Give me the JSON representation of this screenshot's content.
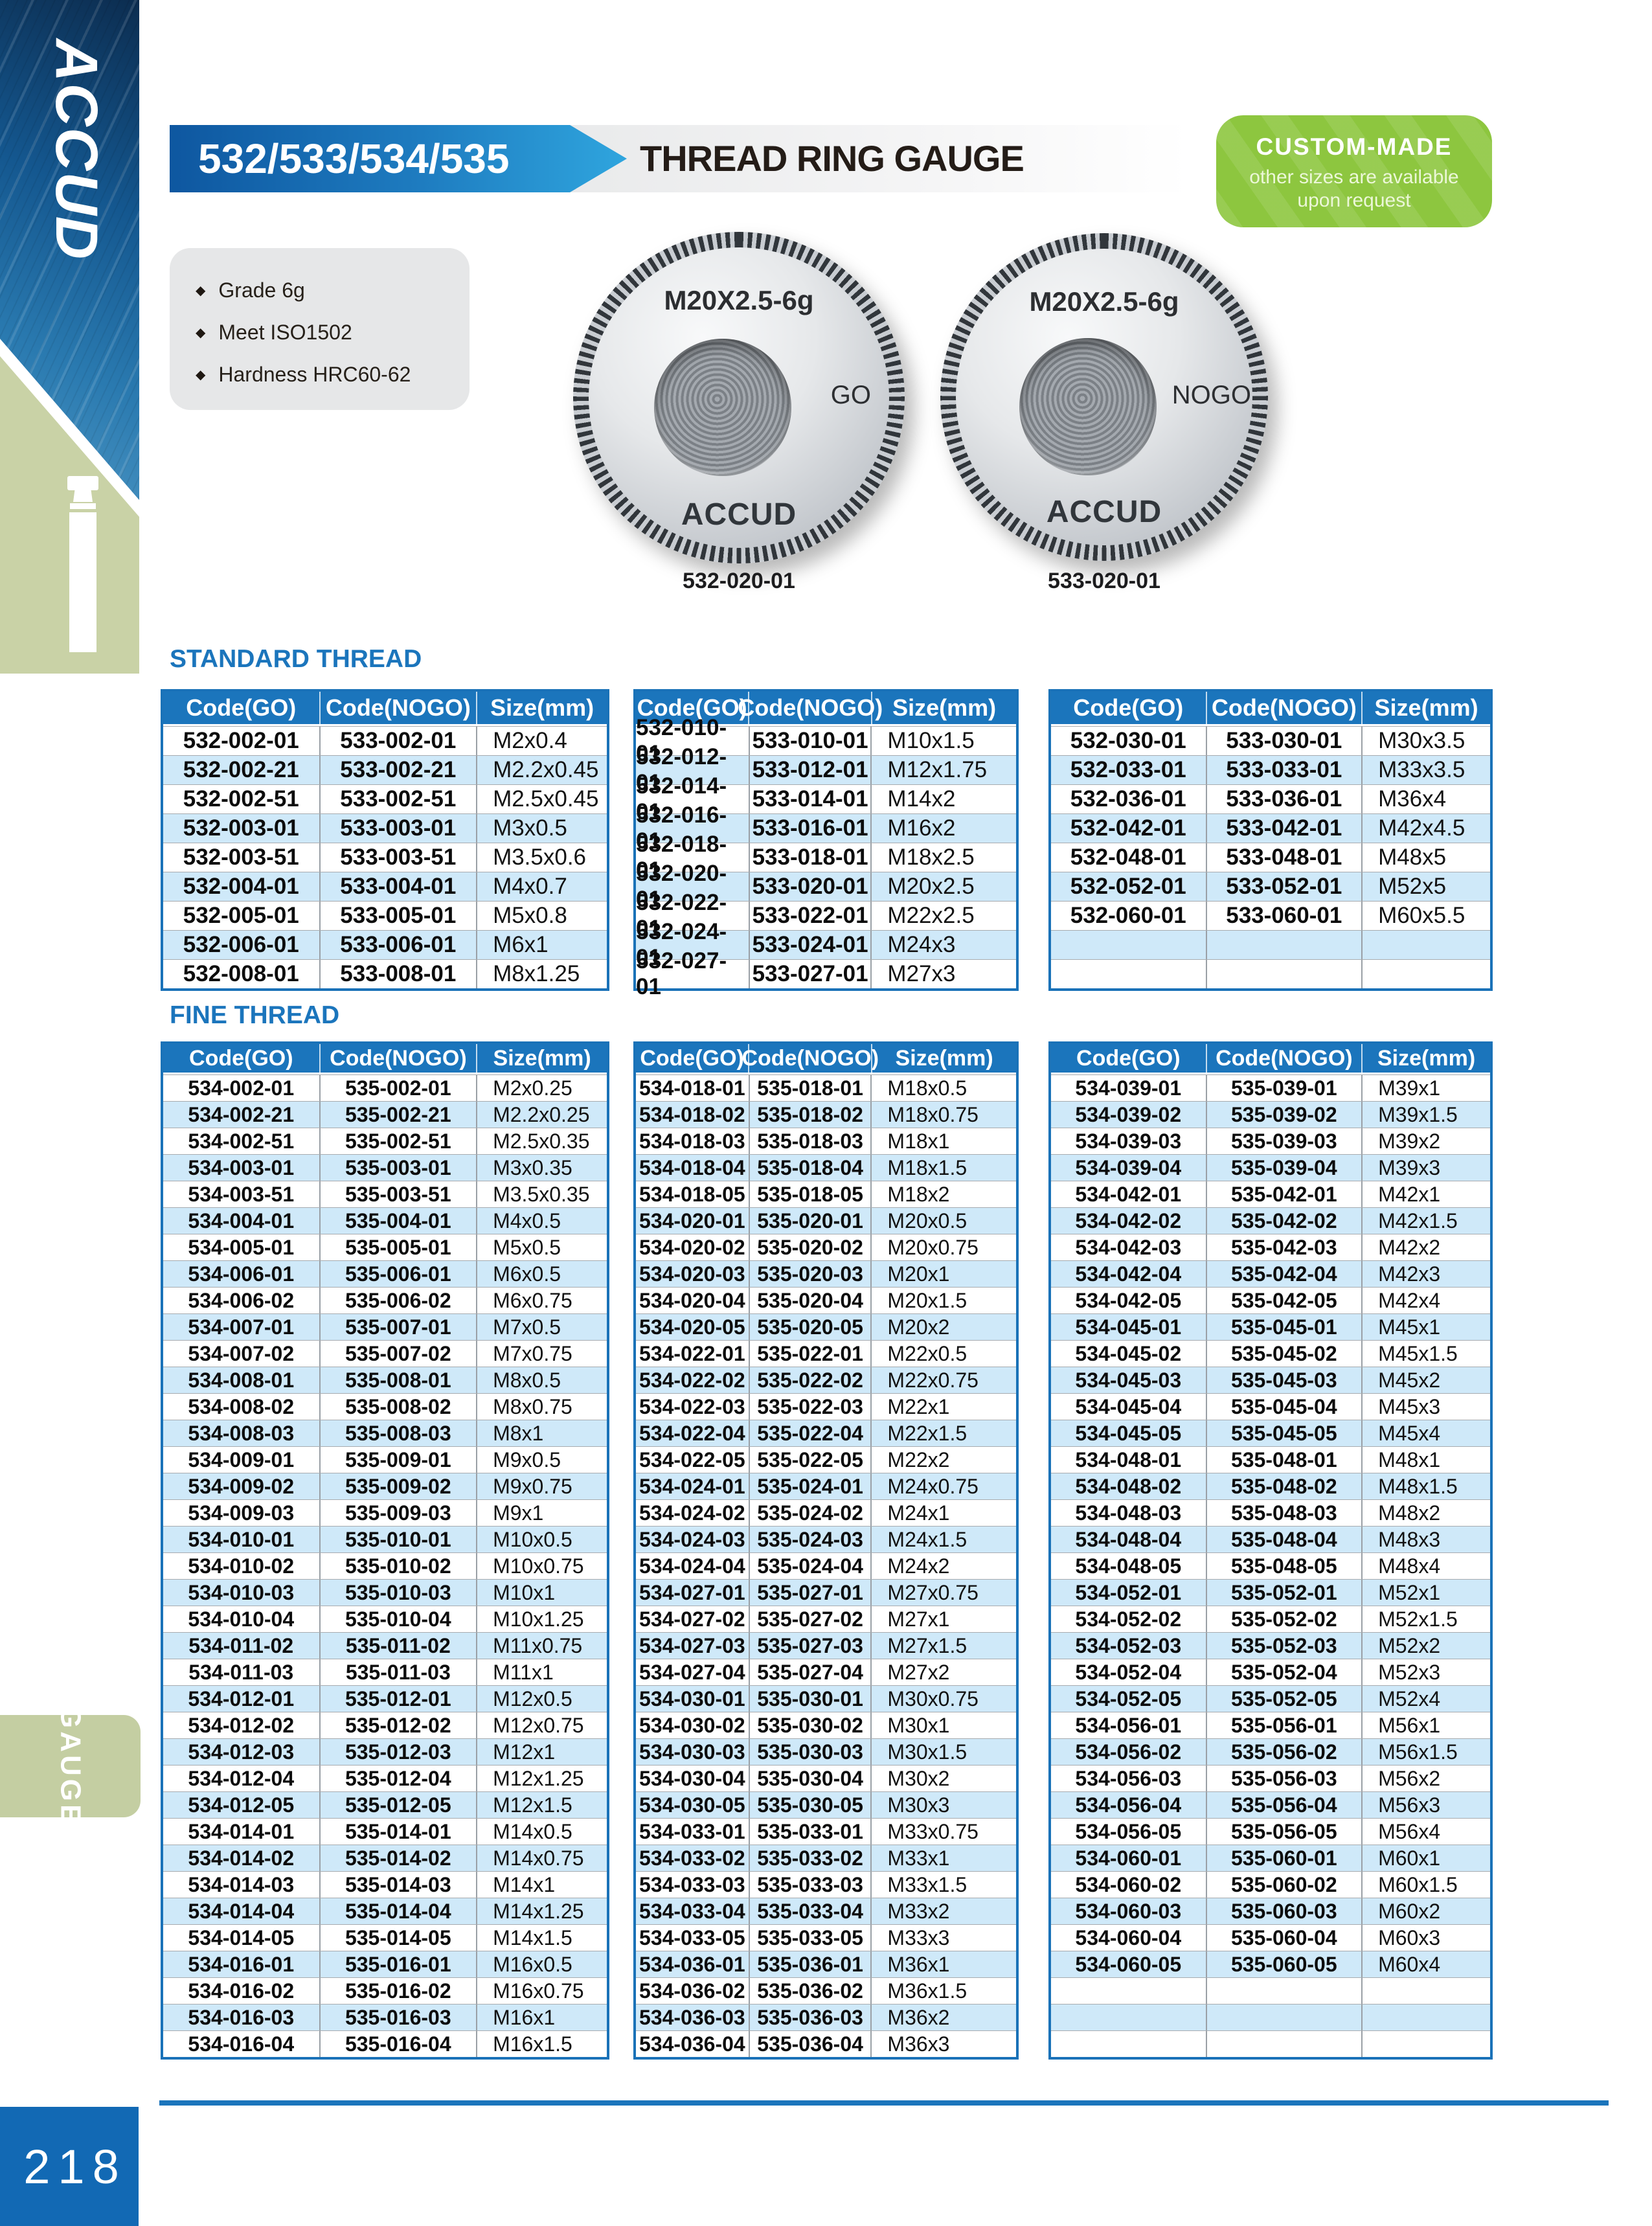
{
  "page": {
    "number": "218",
    "side_tab": "GAUGE"
  },
  "logo": {
    "brand": "ACCUD"
  },
  "header": {
    "series": "532/533/534/535",
    "title": "THREAD RING GAUGE",
    "badge": {
      "title": "CUSTOM-MADE",
      "line1": "other sizes are available",
      "line2": "upon request"
    }
  },
  "features": [
    "Grade 6g",
    "Meet ISO1502",
    "Hardness HRC60-62"
  ],
  "products": [
    {
      "marking": "M20X2.5-6g",
      "type": "GO",
      "brand": "ACCUD",
      "caption": "532-020-01"
    },
    {
      "marking": "M20X2.5-6g",
      "type": "NOGO",
      "brand": "ACCUD",
      "caption": "533-020-01"
    }
  ],
  "columns": [
    "Code(GO)",
    "Code(NOGO)",
    "Size(mm)"
  ],
  "colors": {
    "accent_blue": "#1b75bc",
    "row_alt_blue": "#cfe9f9",
    "badge_green": "#8dc63f",
    "sidebar_green": "#c9d2a6",
    "tab_green": "#c4cea2",
    "pagenum_blue": "#1269b4"
  },
  "sections": [
    {
      "heading": "STANDARD THREAD",
      "tables": [
        {
          "rows": [
            [
              "532-002-01",
              "533-002-01",
              "M2x0.4"
            ],
            [
              "532-002-21",
              "533-002-21",
              "M2.2x0.45"
            ],
            [
              "532-002-51",
              "533-002-51",
              "M2.5x0.45"
            ],
            [
              "532-003-01",
              "533-003-01",
              "M3x0.5"
            ],
            [
              "532-003-51",
              "533-003-51",
              "M3.5x0.6"
            ],
            [
              "532-004-01",
              "533-004-01",
              "M4x0.7"
            ],
            [
              "532-005-01",
              "533-005-01",
              "M5x0.8"
            ],
            [
              "532-006-01",
              "533-006-01",
              "M6x1"
            ],
            [
              "532-008-01",
              "533-008-01",
              "M8x1.25"
            ]
          ]
        },
        {
          "rows": [
            [
              "532-010-01",
              "533-010-01",
              "M10x1.5"
            ],
            [
              "532-012-01",
              "533-012-01",
              "M12x1.75"
            ],
            [
              "532-014-01",
              "533-014-01",
              "M14x2"
            ],
            [
              "532-016-01",
              "533-016-01",
              "M16x2"
            ],
            [
              "532-018-01",
              "533-018-01",
              "M18x2.5"
            ],
            [
              "532-020-01",
              "533-020-01",
              "M20x2.5"
            ],
            [
              "532-022-01",
              "533-022-01",
              "M22x2.5"
            ],
            [
              "532-024-01",
              "533-024-01",
              "M24x3"
            ],
            [
              "532-027-01",
              "533-027-01",
              "M27x3"
            ]
          ]
        },
        {
          "rows": [
            [
              "532-030-01",
              "533-030-01",
              "M30x3.5"
            ],
            [
              "532-033-01",
              "533-033-01",
              "M33x3.5"
            ],
            [
              "532-036-01",
              "533-036-01",
              "M36x4"
            ],
            [
              "532-042-01",
              "533-042-01",
              "M42x4.5"
            ],
            [
              "532-048-01",
              "533-048-01",
              "M48x5"
            ],
            [
              "532-052-01",
              "533-052-01",
              "M52x5"
            ],
            [
              "532-060-01",
              "533-060-01",
              "M60x5.5"
            ],
            [
              "",
              "",
              ""
            ],
            [
              "",
              "",
              ""
            ]
          ]
        }
      ]
    },
    {
      "heading": "FINE THREAD",
      "tables": [
        {
          "rows": [
            [
              "534-002-01",
              "535-002-01",
              "M2x0.25"
            ],
            [
              "534-002-21",
              "535-002-21",
              "M2.2x0.25"
            ],
            [
              "534-002-51",
              "535-002-51",
              "M2.5x0.35"
            ],
            [
              "534-003-01",
              "535-003-01",
              "M3x0.35"
            ],
            [
              "534-003-51",
              "535-003-51",
              "M3.5x0.35"
            ],
            [
              "534-004-01",
              "535-004-01",
              "M4x0.5"
            ],
            [
              "534-005-01",
              "535-005-01",
              "M5x0.5"
            ],
            [
              "534-006-01",
              "535-006-01",
              "M6x0.5"
            ],
            [
              "534-006-02",
              "535-006-02",
              "M6x0.75"
            ],
            [
              "534-007-01",
              "535-007-01",
              "M7x0.5"
            ],
            [
              "534-007-02",
              "535-007-02",
              "M7x0.75"
            ],
            [
              "534-008-01",
              "535-008-01",
              "M8x0.5"
            ],
            [
              "534-008-02",
              "535-008-02",
              "M8x0.75"
            ],
            [
              "534-008-03",
              "535-008-03",
              "M8x1"
            ],
            [
              "534-009-01",
              "535-009-01",
              "M9x0.5"
            ],
            [
              "534-009-02",
              "535-009-02",
              "M9x0.75"
            ],
            [
              "534-009-03",
              "535-009-03",
              "M9x1"
            ],
            [
              "534-010-01",
              "535-010-01",
              "M10x0.5"
            ],
            [
              "534-010-02",
              "535-010-02",
              "M10x0.75"
            ],
            [
              "534-010-03",
              "535-010-03",
              "M10x1"
            ],
            [
              "534-010-04",
              "535-010-04",
              "M10x1.25"
            ],
            [
              "534-011-02",
              "535-011-02",
              "M11x0.75"
            ],
            [
              "534-011-03",
              "535-011-03",
              "M11x1"
            ],
            [
              "534-012-01",
              "535-012-01",
              "M12x0.5"
            ],
            [
              "534-012-02",
              "535-012-02",
              "M12x0.75"
            ],
            [
              "534-012-03",
              "535-012-03",
              "M12x1"
            ],
            [
              "534-012-04",
              "535-012-04",
              "M12x1.25"
            ],
            [
              "534-012-05",
              "535-012-05",
              "M12x1.5"
            ],
            [
              "534-014-01",
              "535-014-01",
              "M14x0.5"
            ],
            [
              "534-014-02",
              "535-014-02",
              "M14x0.75"
            ],
            [
              "534-014-03",
              "535-014-03",
              "M14x1"
            ],
            [
              "534-014-04",
              "535-014-04",
              "M14x1.25"
            ],
            [
              "534-014-05",
              "535-014-05",
              "M14x1.5"
            ],
            [
              "534-016-01",
              "535-016-01",
              "M16x0.5"
            ],
            [
              "534-016-02",
              "535-016-02",
              "M16x0.75"
            ],
            [
              "534-016-03",
              "535-016-03",
              "M16x1"
            ],
            [
              "534-016-04",
              "535-016-04",
              "M16x1.5"
            ]
          ]
        },
        {
          "rows": [
            [
              "534-018-01",
              "535-018-01",
              "M18x0.5"
            ],
            [
              "534-018-02",
              "535-018-02",
              "M18x0.75"
            ],
            [
              "534-018-03",
              "535-018-03",
              "M18x1"
            ],
            [
              "534-018-04",
              "535-018-04",
              "M18x1.5"
            ],
            [
              "534-018-05",
              "535-018-05",
              "M18x2"
            ],
            [
              "534-020-01",
              "535-020-01",
              "M20x0.5"
            ],
            [
              "534-020-02",
              "535-020-02",
              "M20x0.75"
            ],
            [
              "534-020-03",
              "535-020-03",
              "M20x1"
            ],
            [
              "534-020-04",
              "535-020-04",
              "M20x1.5"
            ],
            [
              "534-020-05",
              "535-020-05",
              "M20x2"
            ],
            [
              "534-022-01",
              "535-022-01",
              "M22x0.5"
            ],
            [
              "534-022-02",
              "535-022-02",
              "M22x0.75"
            ],
            [
              "534-022-03",
              "535-022-03",
              "M22x1"
            ],
            [
              "534-022-04",
              "535-022-04",
              "M22x1.5"
            ],
            [
              "534-022-05",
              "535-022-05",
              "M22x2"
            ],
            [
              "534-024-01",
              "535-024-01",
              "M24x0.75"
            ],
            [
              "534-024-02",
              "535-024-02",
              "M24x1"
            ],
            [
              "534-024-03",
              "535-024-03",
              "M24x1.5"
            ],
            [
              "534-024-04",
              "535-024-04",
              "M24x2"
            ],
            [
              "534-027-01",
              "535-027-01",
              "M27x0.75"
            ],
            [
              "534-027-02",
              "535-027-02",
              "M27x1"
            ],
            [
              "534-027-03",
              "535-027-03",
              "M27x1.5"
            ],
            [
              "534-027-04",
              "535-027-04",
              "M27x2"
            ],
            [
              "534-030-01",
              "535-030-01",
              "M30x0.75"
            ],
            [
              "534-030-02",
              "535-030-02",
              "M30x1"
            ],
            [
              "534-030-03",
              "535-030-03",
              "M30x1.5"
            ],
            [
              "534-030-04",
              "535-030-04",
              "M30x2"
            ],
            [
              "534-030-05",
              "535-030-05",
              "M30x3"
            ],
            [
              "534-033-01",
              "535-033-01",
              "M33x0.75"
            ],
            [
              "534-033-02",
              "535-033-02",
              "M33x1"
            ],
            [
              "534-033-03",
              "535-033-03",
              "M33x1.5"
            ],
            [
              "534-033-04",
              "535-033-04",
              "M33x2"
            ],
            [
              "534-033-05",
              "535-033-05",
              "M33x3"
            ],
            [
              "534-036-01",
              "535-036-01",
              "M36x1"
            ],
            [
              "534-036-02",
              "535-036-02",
              "M36x1.5"
            ],
            [
              "534-036-03",
              "535-036-03",
              "M36x2"
            ],
            [
              "534-036-04",
              "535-036-04",
              "M36x3"
            ]
          ]
        },
        {
          "rows": [
            [
              "534-039-01",
              "535-039-01",
              "M39x1"
            ],
            [
              "534-039-02",
              "535-039-02",
              "M39x1.5"
            ],
            [
              "534-039-03",
              "535-039-03",
              "M39x2"
            ],
            [
              "534-039-04",
              "535-039-04",
              "M39x3"
            ],
            [
              "534-042-01",
              "535-042-01",
              "M42x1"
            ],
            [
              "534-042-02",
              "535-042-02",
              "M42x1.5"
            ],
            [
              "534-042-03",
              "535-042-03",
              "M42x2"
            ],
            [
              "534-042-04",
              "535-042-04",
              "M42x3"
            ],
            [
              "534-042-05",
              "535-042-05",
              "M42x4"
            ],
            [
              "534-045-01",
              "535-045-01",
              "M45x1"
            ],
            [
              "534-045-02",
              "535-045-02",
              "M45x1.5"
            ],
            [
              "534-045-03",
              "535-045-03",
              "M45x2"
            ],
            [
              "534-045-04",
              "535-045-04",
              "M45x3"
            ],
            [
              "534-045-05",
              "535-045-05",
              "M45x4"
            ],
            [
              "534-048-01",
              "535-048-01",
              "M48x1"
            ],
            [
              "534-048-02",
              "535-048-02",
              "M48x1.5"
            ],
            [
              "534-048-03",
              "535-048-03",
              "M48x2"
            ],
            [
              "534-048-04",
              "535-048-04",
              "M48x3"
            ],
            [
              "534-048-05",
              "535-048-05",
              "M48x4"
            ],
            [
              "534-052-01",
              "535-052-01",
              "M52x1"
            ],
            [
              "534-052-02",
              "535-052-02",
              "M52x1.5"
            ],
            [
              "534-052-03",
              "535-052-03",
              "M52x2"
            ],
            [
              "534-052-04",
              "535-052-04",
              "M52x3"
            ],
            [
              "534-052-05",
              "535-052-05",
              "M52x4"
            ],
            [
              "534-056-01",
              "535-056-01",
              "M56x1"
            ],
            [
              "534-056-02",
              "535-056-02",
              "M56x1.5"
            ],
            [
              "534-056-03",
              "535-056-03",
              "M56x2"
            ],
            [
              "534-056-04",
              "535-056-04",
              "M56x3"
            ],
            [
              "534-056-05",
              "535-056-05",
              "M56x4"
            ],
            [
              "534-060-01",
              "535-060-01",
              "M60x1"
            ],
            [
              "534-060-02",
              "535-060-02",
              "M60x1.5"
            ],
            [
              "534-060-03",
              "535-060-03",
              "M60x2"
            ],
            [
              "534-060-04",
              "535-060-04",
              "M60x3"
            ],
            [
              "534-060-05",
              "535-060-05",
              "M60x4"
            ],
            [
              "",
              "",
              ""
            ],
            [
              "",
              "",
              ""
            ],
            [
              "",
              "",
              ""
            ]
          ]
        }
      ]
    }
  ]
}
